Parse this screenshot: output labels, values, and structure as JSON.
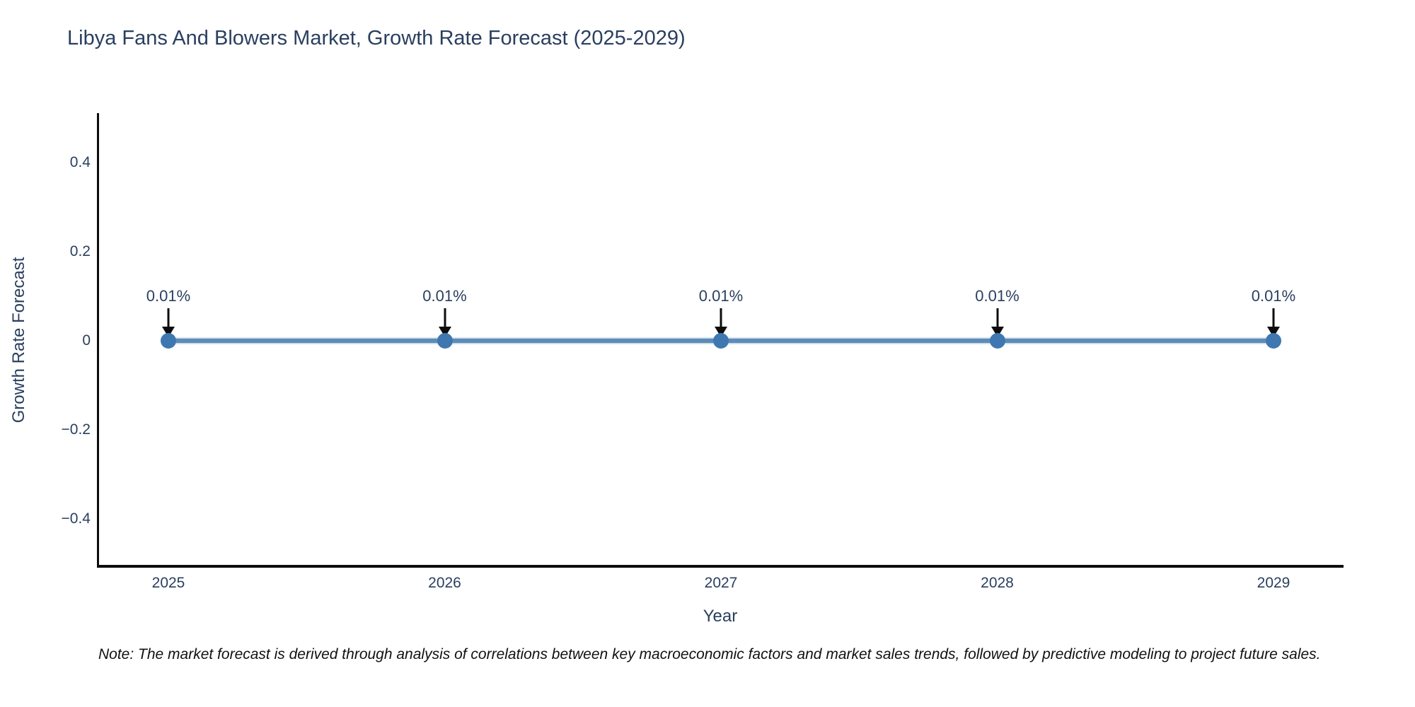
{
  "title": "Libya Fans And Blowers Market, Growth Rate Forecast (2025-2029)",
  "note": "Note: The market forecast is derived through analysis of correlations between key macroeconomic factors and market sales trends, followed by predictive modeling to project future sales.",
  "colors": {
    "title_text": "#2a3f5f",
    "axis_line": "#0d0d0d",
    "tick_text": "#2a3f5f",
    "series_line": "#5d8cb8",
    "marker_fill": "#3f77b0",
    "annotation_text": "#2a3f5f",
    "annotation_arrow": "#0d0d0d",
    "background": "#ffffff"
  },
  "chart_data": {
    "type": "line",
    "title": "Libya Fans And Blowers Market, Growth Rate Forecast (2025-2029)",
    "xlabel": "Year",
    "ylabel": "Growth Rate Forecast",
    "categories": [
      "2025",
      "2026",
      "2027",
      "2028",
      "2029"
    ],
    "series": [
      {
        "name": "Growth Rate Forecast",
        "values": [
          0.0001,
          0.0001,
          0.0001,
          0.0001,
          0.0001
        ],
        "data_labels": [
          "0.01%",
          "0.01%",
          "0.01%",
          "0.01%",
          "0.01%"
        ]
      }
    ],
    "ylim": [
      -0.51,
      0.51
    ],
    "yticks": [
      {
        "value": 0.4,
        "label": "0.4"
      },
      {
        "value": 0.2,
        "label": "0.2"
      },
      {
        "value": 0,
        "label": "0"
      },
      {
        "value": -0.2,
        "label": "−0.2"
      },
      {
        "value": -0.4,
        "label": "−0.4"
      }
    ],
    "grid": false,
    "legend": false,
    "annotation_style": "value label with downward arrow onto each point"
  }
}
